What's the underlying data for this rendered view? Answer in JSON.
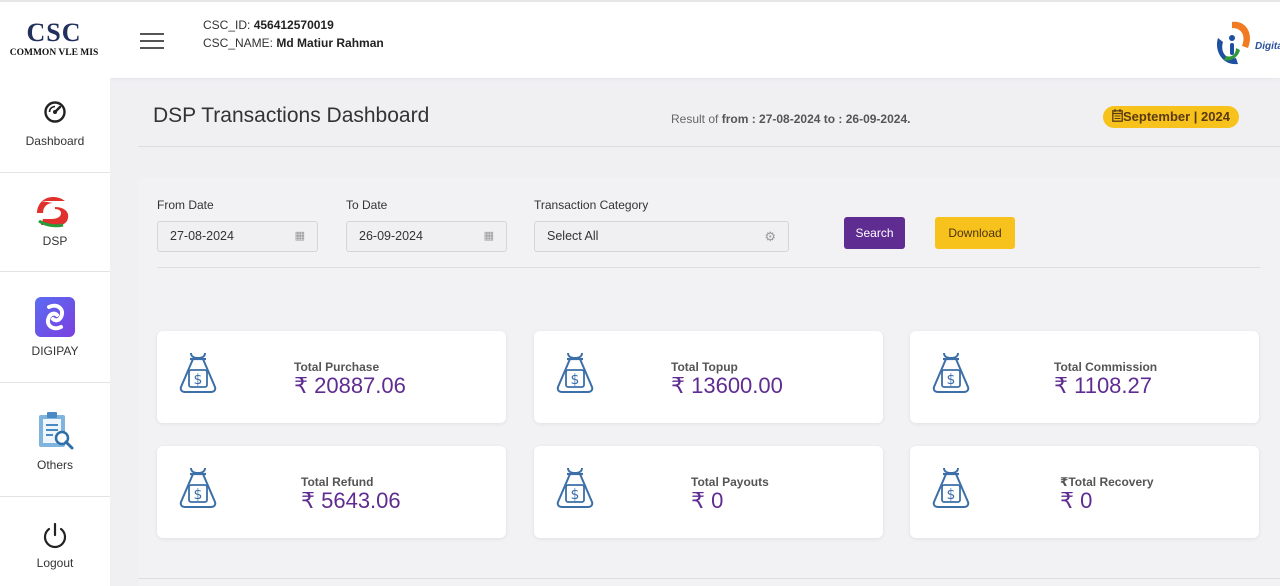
{
  "header": {
    "logo_main": "CSC",
    "logo_sub": "COMMON VLE MIS",
    "csc_id_label": "CSC_ID:",
    "csc_id_value": "456412570019",
    "csc_name_label": "CSC_NAME:",
    "csc_name_value": "Md Matiur Rahman",
    "digital_logo_text": "Digital"
  },
  "sidebar": {
    "items": [
      {
        "label": "Dashboard",
        "icon": "speedometer-icon"
      },
      {
        "label": "DSP",
        "icon": "dsp-logo-icon"
      },
      {
        "label": "DIGIPAY",
        "icon": "digipay-logo-icon"
      },
      {
        "label": "Others",
        "icon": "clipboard-search-icon"
      },
      {
        "label": "Logout",
        "icon": "power-icon"
      }
    ]
  },
  "page": {
    "title": "DSP Transactions Dashboard",
    "result_prefix": "Result of",
    "result_range": "from : 27-08-2024 to : 26-09-2024.",
    "month_badge": "September | 2024",
    "month_badge_icon": "calendar-icon"
  },
  "filters": {
    "from_label": "From Date",
    "from_value": "27-08-2024",
    "to_label": "To Date",
    "to_value": "26-09-2024",
    "category_label": "Transaction Category",
    "category_value": "Select All",
    "search_label": "Search",
    "download_label": "Download"
  },
  "cards": [
    {
      "label": "Total Purchase",
      "value": "₹ 20887.06"
    },
    {
      "label": "Total Topup",
      "value": "₹ 13600.00"
    },
    {
      "label": "Total Commission",
      "value": "₹ 1108.27"
    },
    {
      "label": "Total Refund",
      "value": "₹ 5643.06"
    },
    {
      "label": "Total Payouts",
      "value": "₹ 0"
    },
    {
      "label": "₹Total Recovery",
      "value": "₹ 0"
    }
  ],
  "colors": {
    "primary_purple": "#5f2c91",
    "accent_yellow": "#f8c21c",
    "icon_blue": "#3c6fa8"
  }
}
